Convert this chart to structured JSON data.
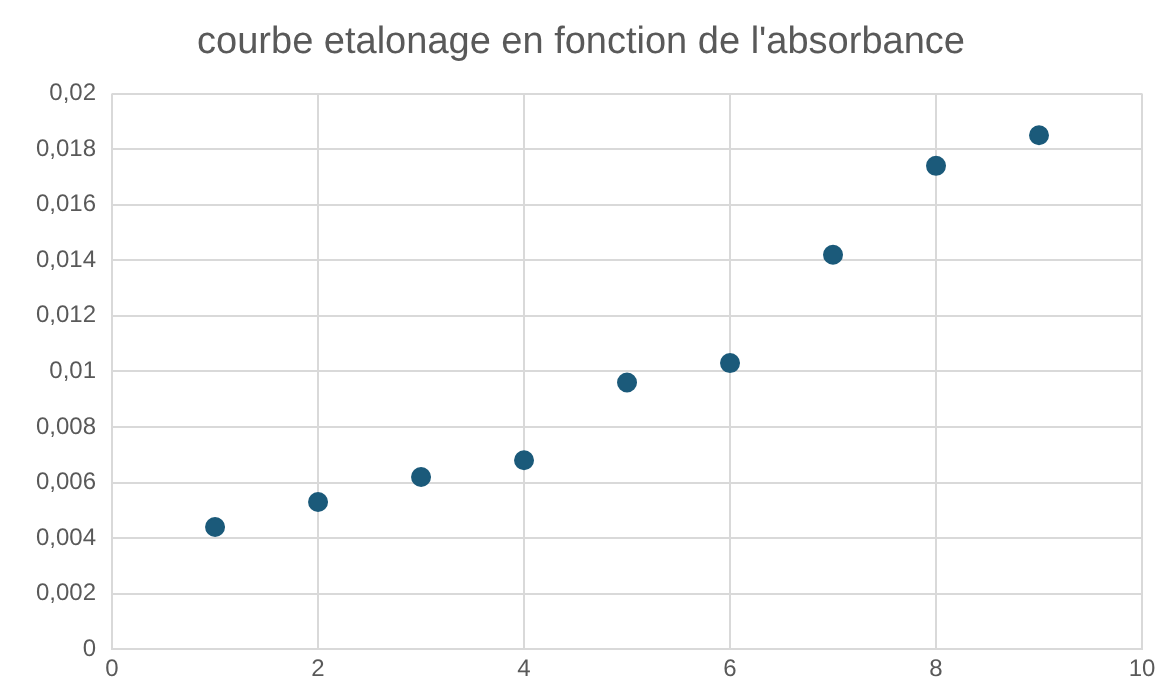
{
  "chart_data": {
    "type": "scatter",
    "title": "courbe etalonage en fonction de l'absorbance",
    "x": [
      1,
      2,
      3,
      4,
      5,
      6,
      7,
      8,
      9
    ],
    "series": [
      {
        "color": "#1b5a7a",
        "values": [
          0.0044,
          0.0053,
          0.0062,
          0.0068,
          0.0096,
          0.0103,
          0.0142,
          0.0174,
          0.0185
        ]
      }
    ],
    "xlim": [
      0,
      10
    ],
    "xticks": [
      0,
      2,
      4,
      6,
      8,
      10
    ],
    "ylim": [
      0,
      0.02
    ],
    "yticks": [
      0,
      {
        "value": 0.002,
        "label": "0,002"
      },
      {
        "value": 0.004,
        "label": "0,004"
      },
      {
        "value": 0.006,
        "label": "0,006"
      },
      {
        "value": 0.008,
        "label": "0,008"
      },
      {
        "value": 0.01,
        "label": "0,01"
      },
      {
        "value": 0.012,
        "label": "0,012"
      },
      {
        "value": 0.014,
        "label": "0,014"
      },
      {
        "value": 0.016,
        "label": "0,016"
      },
      {
        "value": 0.018,
        "label": "0,018"
      },
      {
        "value": 0.02,
        "label": "0,02"
      }
    ],
    "grid": true,
    "legend": false,
    "marker": "circle"
  }
}
